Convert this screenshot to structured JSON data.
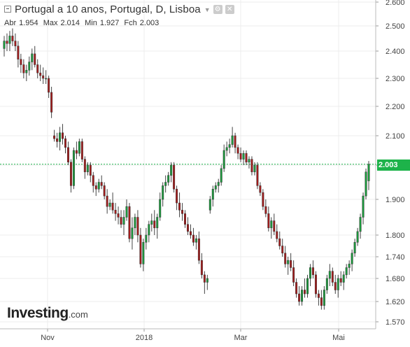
{
  "header": {
    "title": "Portugal a 10 anos, Portugal, D, Lisboa",
    "ohlc": [
      {
        "label": "Abr",
        "value": "1.954"
      },
      {
        "label": "Max",
        "value": "2.014"
      },
      {
        "label": "Min",
        "value": "1.927"
      },
      {
        "label": "Fch",
        "value": "2.003"
      }
    ]
  },
  "logo": {
    "name": "Investing",
    "domain": ".com"
  },
  "colors": {
    "up": "#1a9c3c",
    "down": "#a51b1b",
    "grid": "#ececec",
    "last_line": "#1db34a",
    "axis_text": "#444444"
  },
  "chart_data": {
    "type": "candlestick",
    "last_price": "2.003",
    "y_ticks": [
      "2.600",
      "2.500",
      "2.400",
      "2.300",
      "2.200",
      "2.100",
      "2.000",
      "1.900",
      "1.800",
      "1.740",
      "1.680",
      "1.620",
      "1.570"
    ],
    "x_ticks": [
      "Nov",
      "2018",
      "Mar",
      "Mai"
    ],
    "candles": [
      [
        2.41,
        2.46,
        2.38,
        2.44
      ],
      [
        2.44,
        2.47,
        2.4,
        2.43
      ],
      [
        2.43,
        2.48,
        2.4,
        2.46
      ],
      [
        2.46,
        2.49,
        2.42,
        2.44
      ],
      [
        2.44,
        2.47,
        2.4,
        2.42
      ],
      [
        2.42,
        2.44,
        2.34,
        2.37
      ],
      [
        2.37,
        2.39,
        2.32,
        2.35
      ],
      [
        2.35,
        2.37,
        2.3,
        2.32
      ],
      [
        2.32,
        2.35,
        2.29,
        2.33
      ],
      [
        2.33,
        2.38,
        2.31,
        2.36
      ],
      [
        2.36,
        2.41,
        2.33,
        2.39
      ],
      [
        2.39,
        2.42,
        2.34,
        2.35
      ],
      [
        2.35,
        2.37,
        2.3,
        2.32
      ],
      [
        2.32,
        2.35,
        2.29,
        2.31
      ],
      [
        2.31,
        2.34,
        2.28,
        2.3
      ],
      [
        2.3,
        2.33,
        2.28,
        2.3
      ],
      [
        2.3,
        2.31,
        2.23,
        2.25
      ],
      [
        2.25,
        2.27,
        2.16,
        2.18
      ],
      [
        2.1,
        2.12,
        2.08,
        2.09
      ],
      [
        2.09,
        2.11,
        2.06,
        2.08
      ],
      [
        2.08,
        2.13,
        2.05,
        2.11
      ],
      [
        2.11,
        2.14,
        2.07,
        2.09
      ],
      [
        2.09,
        2.1,
        2.04,
        2.06
      ],
      [
        2.06,
        2.08,
        2.0,
        2.01
      ],
      [
        2.01,
        2.02,
        1.92,
        1.94
      ],
      [
        1.94,
        2.06,
        1.93,
        2.05
      ],
      [
        2.05,
        2.08,
        2.02,
        2.04
      ],
      [
        2.04,
        2.09,
        2.03,
        2.08
      ],
      [
        2.08,
        2.09,
        2.01,
        2.02
      ],
      [
        2.02,
        2.03,
        1.96,
        1.98
      ],
      [
        1.98,
        2.01,
        1.97,
        2.0
      ],
      [
        2.0,
        2.01,
        1.95,
        1.97
      ],
      [
        1.97,
        1.98,
        1.92,
        1.94
      ],
      [
        1.94,
        1.95,
        1.91,
        1.93
      ],
      [
        1.93,
        1.96,
        1.92,
        1.95
      ],
      [
        1.95,
        1.97,
        1.93,
        1.94
      ],
      [
        1.94,
        1.95,
        1.9,
        1.91
      ],
      [
        1.91,
        1.93,
        1.86,
        1.88
      ],
      [
        1.88,
        1.9,
        1.87,
        1.89
      ],
      [
        1.89,
        1.92,
        1.86,
        1.87
      ],
      [
        1.87,
        1.89,
        1.84,
        1.86
      ],
      [
        1.86,
        1.88,
        1.83,
        1.85
      ],
      [
        1.85,
        1.87,
        1.82,
        1.83
      ],
      [
        1.83,
        1.87,
        1.8,
        1.85
      ],
      [
        1.85,
        1.9,
        1.84,
        1.88
      ],
      [
        1.88,
        1.89,
        1.78,
        1.79
      ],
      [
        1.79,
        1.85,
        1.76,
        1.82
      ],
      [
        1.82,
        1.86,
        1.8,
        1.85
      ],
      [
        1.85,
        1.87,
        1.78,
        1.8
      ],
      [
        1.8,
        1.82,
        1.71,
        1.72
      ],
      [
        1.72,
        1.79,
        1.7,
        1.78
      ],
      [
        1.78,
        1.82,
        1.76,
        1.8
      ],
      [
        1.8,
        1.84,
        1.78,
        1.83
      ],
      [
        1.83,
        1.86,
        1.81,
        1.84
      ],
      [
        1.84,
        1.87,
        1.8,
        1.82
      ],
      [
        1.82,
        1.86,
        1.79,
        1.85
      ],
      [
        1.85,
        1.92,
        1.84,
        1.9
      ],
      [
        1.9,
        1.95,
        1.88,
        1.94
      ],
      [
        1.94,
        1.97,
        1.92,
        1.95
      ],
      [
        1.95,
        1.98,
        1.94,
        1.97
      ],
      [
        1.97,
        2.01,
        1.95,
        2.0
      ],
      [
        2.0,
        2.01,
        1.92,
        1.93
      ],
      [
        1.93,
        1.94,
        1.87,
        1.89
      ],
      [
        1.89,
        1.92,
        1.85,
        1.87
      ],
      [
        1.87,
        1.89,
        1.84,
        1.86
      ],
      [
        1.86,
        1.87,
        1.82,
        1.83
      ],
      [
        1.83,
        1.85,
        1.8,
        1.81
      ],
      [
        1.81,
        1.83,
        1.79,
        1.8
      ],
      [
        1.8,
        1.82,
        1.77,
        1.78
      ],
      [
        1.78,
        1.8,
        1.76,
        1.79
      ],
      [
        1.79,
        1.81,
        1.72,
        1.73
      ],
      [
        1.73,
        1.75,
        1.68,
        1.69
      ],
      [
        1.69,
        1.7,
        1.64,
        1.67
      ],
      [
        1.67,
        1.69,
        1.65,
        1.68
      ],
      [
        1.87,
        1.91,
        1.86,
        1.9
      ],
      [
        1.9,
        1.94,
        1.88,
        1.93
      ],
      [
        1.93,
        1.95,
        1.92,
        1.94
      ],
      [
        1.94,
        1.96,
        1.92,
        1.95
      ],
      [
        1.95,
        2.0,
        1.94,
        1.99
      ],
      [
        1.99,
        2.07,
        1.98,
        2.05
      ],
      [
        2.05,
        2.08,
        2.03,
        2.06
      ],
      [
        2.06,
        2.09,
        2.04,
        2.07
      ],
      [
        2.07,
        2.13,
        2.06,
        2.1
      ],
      [
        2.1,
        2.11,
        2.04,
        2.06
      ],
      [
        2.06,
        2.07,
        2.02,
        2.04
      ],
      [
        2.04,
        2.06,
        2.01,
        2.02
      ],
      [
        2.02,
        2.05,
        2.0,
        2.04
      ],
      [
        2.04,
        2.05,
        2.0,
        2.01
      ],
      [
        2.01,
        2.03,
        1.99,
        2.02
      ],
      [
        2.02,
        2.03,
        1.97,
        1.98
      ],
      [
        1.98,
        2.01,
        1.97,
        2.0
      ],
      [
        2.0,
        2.01,
        1.93,
        1.94
      ],
      [
        1.94,
        1.95,
        1.91,
        1.92
      ],
      [
        1.92,
        1.93,
        1.87,
        1.88
      ],
      [
        1.88,
        1.9,
        1.85,
        1.86
      ],
      [
        1.86,
        1.88,
        1.81,
        1.82
      ],
      [
        1.82,
        1.85,
        1.79,
        1.84
      ],
      [
        1.84,
        1.86,
        1.8,
        1.81
      ],
      [
        1.81,
        1.83,
        1.78,
        1.79
      ],
      [
        1.79,
        1.81,
        1.76,
        1.77
      ],
      [
        1.77,
        1.79,
        1.74,
        1.75
      ],
      [
        1.75,
        1.77,
        1.71,
        1.72
      ],
      [
        1.72,
        1.74,
        1.69,
        1.73
      ],
      [
        1.73,
        1.75,
        1.7,
        1.71
      ],
      [
        1.71,
        1.73,
        1.66,
        1.67
      ],
      [
        1.67,
        1.68,
        1.63,
        1.64
      ],
      [
        1.64,
        1.66,
        1.61,
        1.62
      ],
      [
        1.62,
        1.66,
        1.61,
        1.65
      ],
      [
        1.65,
        1.68,
        1.63,
        1.64
      ],
      [
        1.64,
        1.69,
        1.63,
        1.68
      ],
      [
        1.68,
        1.72,
        1.66,
        1.71
      ],
      [
        1.71,
        1.73,
        1.68,
        1.69
      ],
      [
        1.69,
        1.7,
        1.63,
        1.64
      ],
      [
        1.64,
        1.65,
        1.61,
        1.63
      ],
      [
        1.63,
        1.65,
        1.6,
        1.61
      ],
      [
        1.61,
        1.66,
        1.6,
        1.65
      ],
      [
        1.65,
        1.69,
        1.64,
        1.68
      ],
      [
        1.68,
        1.72,
        1.66,
        1.7
      ],
      [
        1.7,
        1.71,
        1.66,
        1.67
      ],
      [
        1.67,
        1.69,
        1.64,
        1.65
      ],
      [
        1.65,
        1.69,
        1.63,
        1.68
      ],
      [
        1.68,
        1.7,
        1.66,
        1.67
      ],
      [
        1.67,
        1.7,
        1.65,
        1.69
      ],
      [
        1.69,
        1.72,
        1.68,
        1.71
      ],
      [
        1.71,
        1.73,
        1.69,
        1.72
      ],
      [
        1.72,
        1.76,
        1.7,
        1.75
      ],
      [
        1.75,
        1.79,
        1.74,
        1.78
      ],
      [
        1.78,
        1.82,
        1.77,
        1.81
      ],
      [
        1.81,
        1.86,
        1.79,
        1.85
      ],
      [
        1.85,
        1.92,
        1.83,
        1.91
      ],
      [
        1.91,
        1.99,
        1.9,
        1.98
      ],
      [
        1.954,
        2.014,
        1.927,
        2.003
      ]
    ]
  }
}
